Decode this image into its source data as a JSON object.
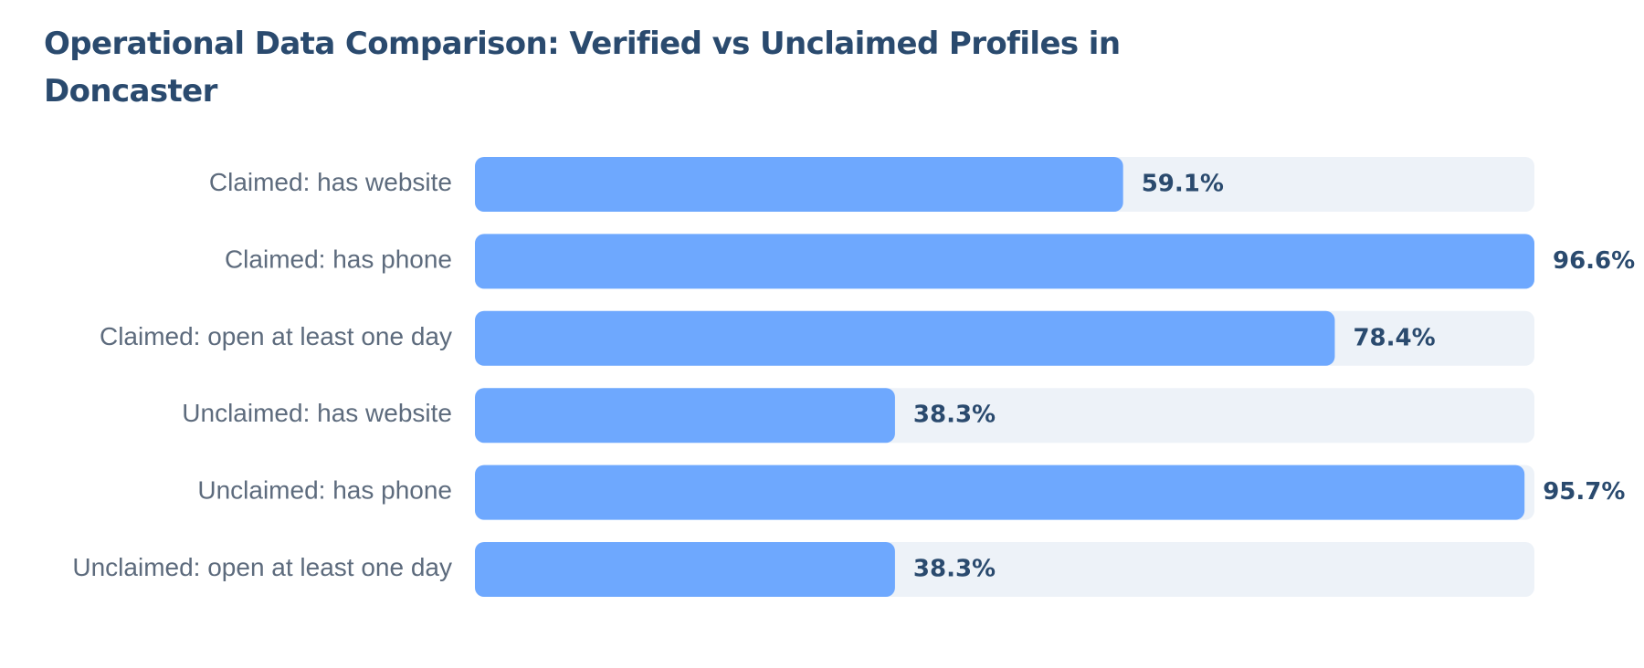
{
  "chart_data": {
    "type": "bar",
    "orientation": "horizontal",
    "title": "Operational Data Comparison: Verified vs Unclaimed Profiles in Doncaster",
    "categories": [
      "Claimed: has website",
      "Claimed: has phone",
      "Claimed: open at least one day",
      "Unclaimed: has website",
      "Unclaimed: has phone",
      "Unclaimed: open at least one day"
    ],
    "values": [
      59.1,
      96.6,
      78.4,
      38.3,
      95.7,
      38.3
    ],
    "value_labels": [
      "59.1%",
      "96.6%",
      "78.4%",
      "38.3%",
      "95.7%",
      "38.3%"
    ],
    "unit": "%",
    "xlim": [
      0,
      96.6
    ],
    "grid": false,
    "legend": "none",
    "colors": {
      "bar": "#6ea8fe",
      "track": "#edf2f8",
      "title": "#2a4a6e",
      "category_label": "#5d6b7d",
      "value_label": "#2a4a6e"
    }
  }
}
